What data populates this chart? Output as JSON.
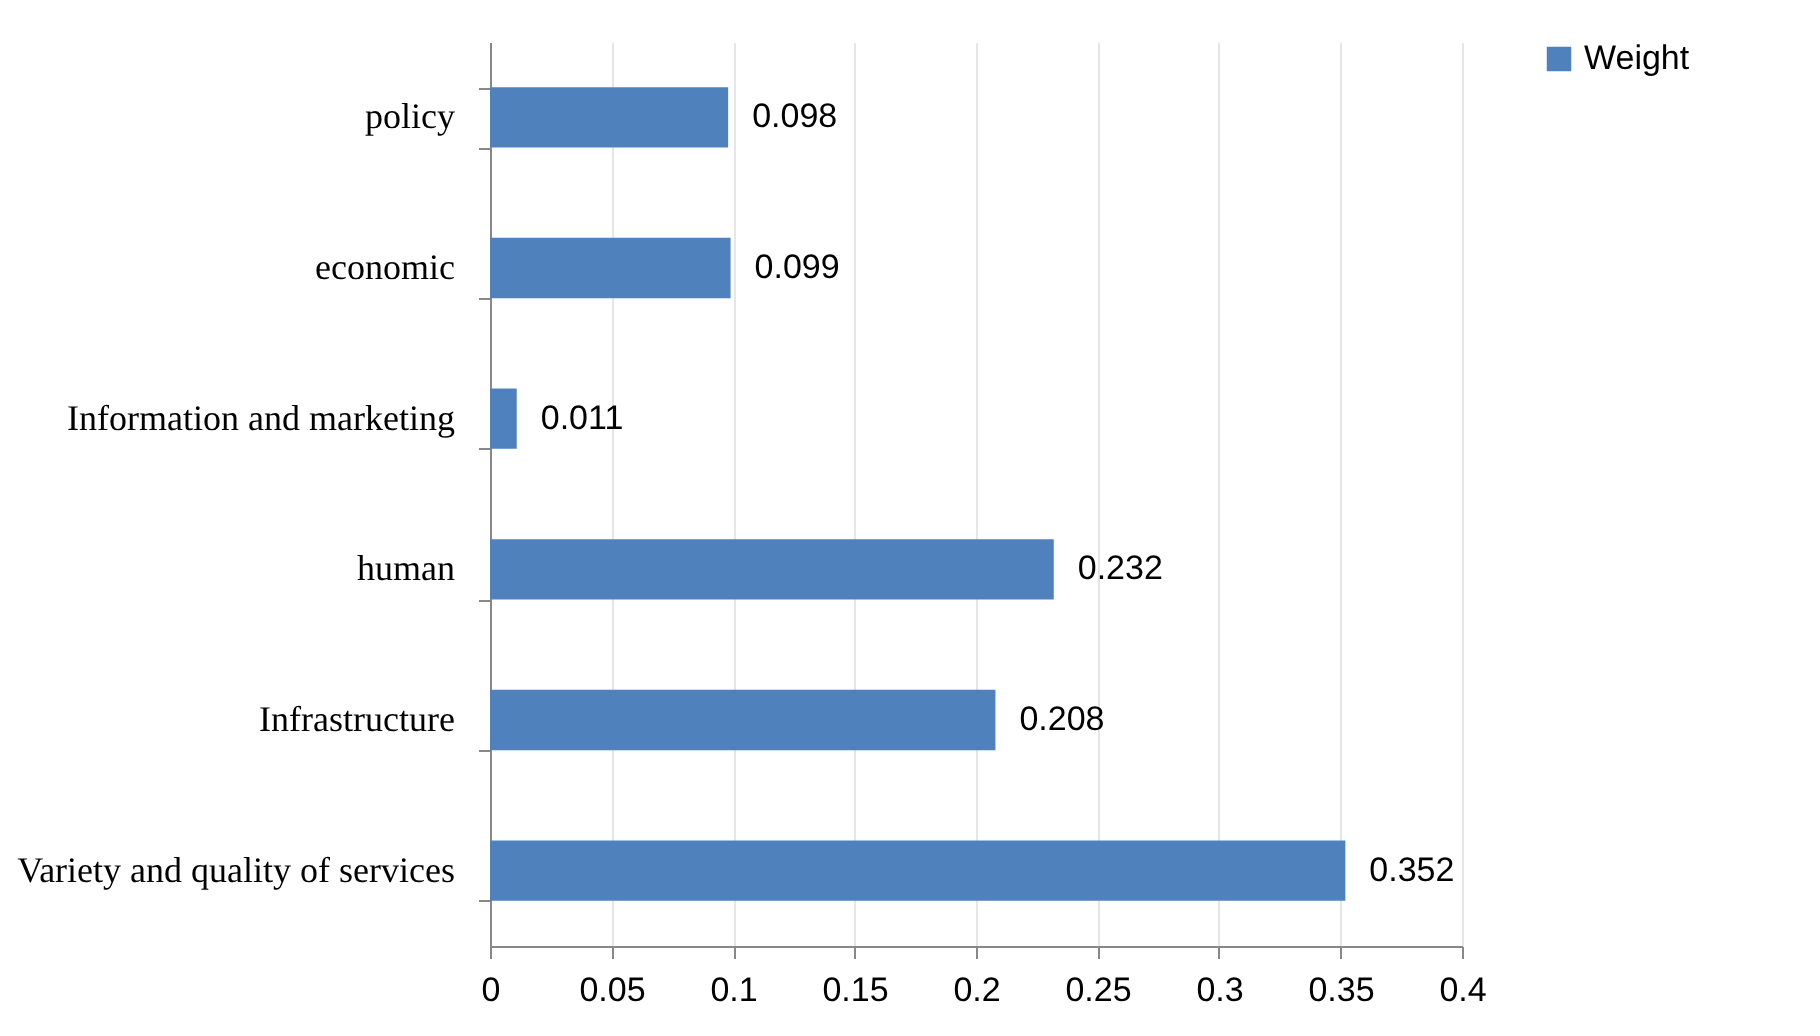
{
  "chart_data": {
    "type": "bar",
    "orientation": "horizontal",
    "categories": [
      "policy",
      "economic",
      "Information and marketing",
      "human",
      "Infrastructure",
      "Variety and quality of services"
    ],
    "series": [
      {
        "name": "Weight",
        "color": "#4f81bd",
        "values": [
          0.098,
          0.099,
          0.011,
          0.232,
          0.208,
          0.352
        ]
      }
    ],
    "xlim": [
      0,
      0.4
    ],
    "xticks": [
      0,
      0.05,
      0.1,
      0.15,
      0.2,
      0.25,
      0.3,
      0.35,
      0.4
    ],
    "grid": "x",
    "legend": "right",
    "data_labels": true
  }
}
